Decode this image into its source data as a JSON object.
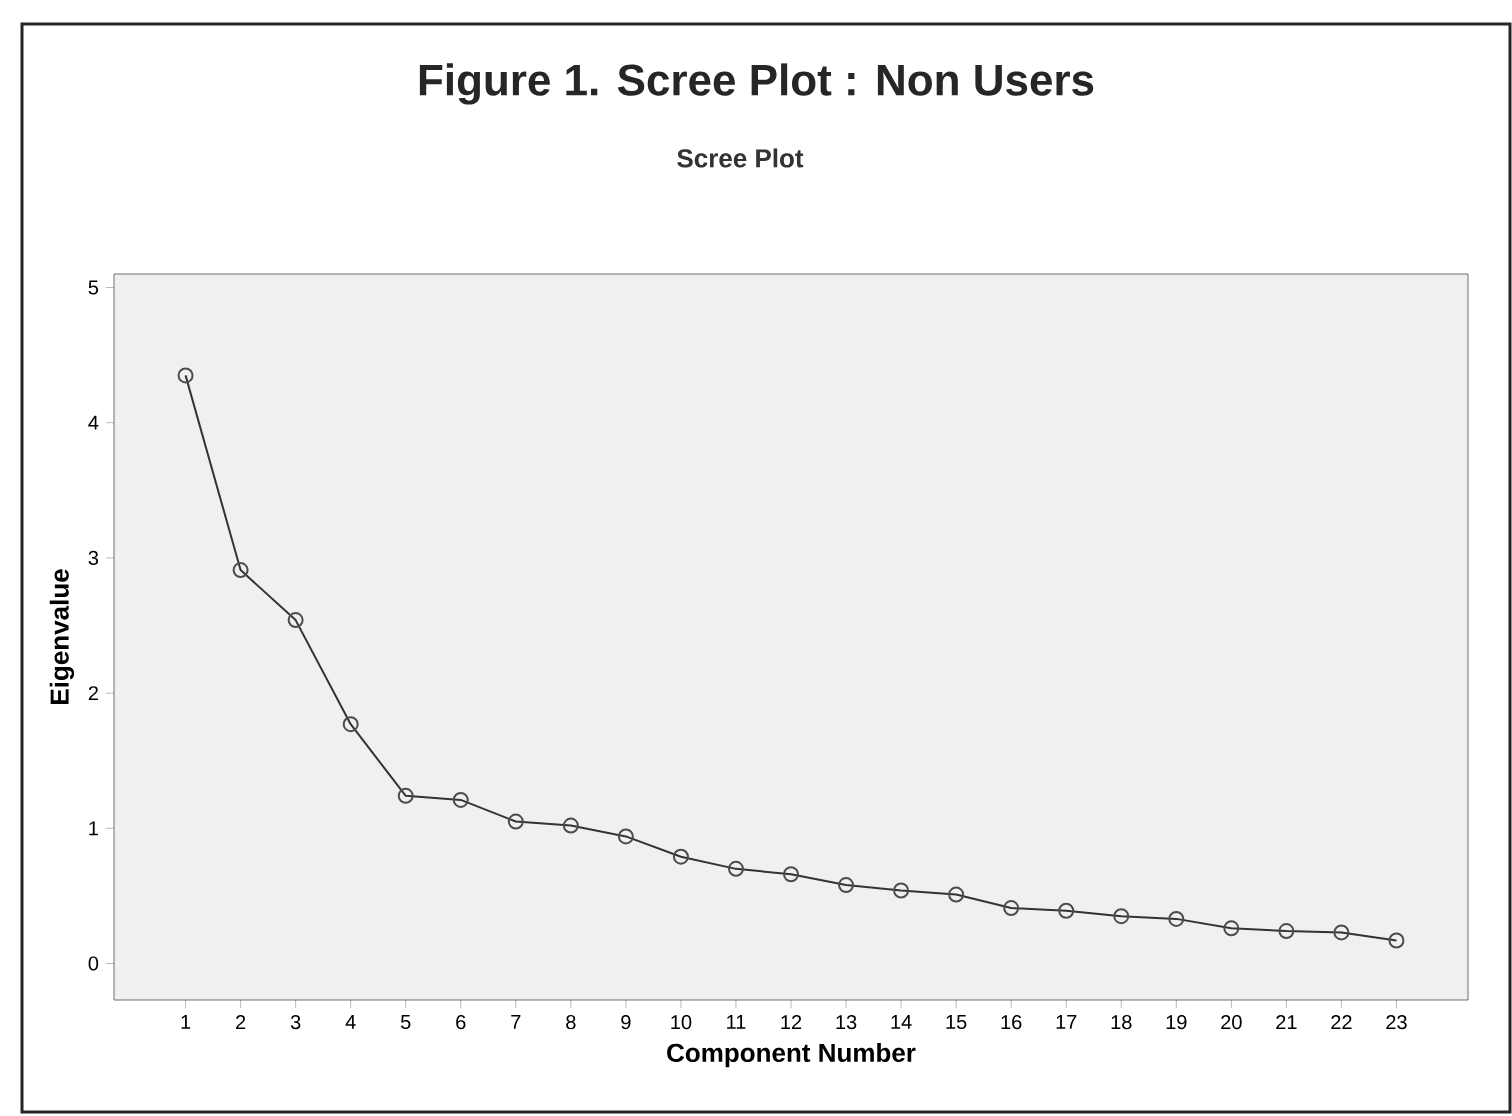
{
  "chart_data": {
    "type": "line",
    "title": "Figure 1. Scree Plot : Non Users",
    "subtitle": "Scree Plot",
    "xlabel": "Component Number",
    "ylabel": "Eigenvalue",
    "x": [
      1,
      2,
      3,
      4,
      5,
      6,
      7,
      8,
      9,
      10,
      11,
      12,
      13,
      14,
      15,
      16,
      17,
      18,
      19,
      20,
      21,
      22,
      23
    ],
    "series": [
      {
        "color": "#333333",
        "values": [
          4.35,
          2.91,
          2.54,
          1.77,
          1.24,
          1.21,
          1.05,
          1.02,
          0.94,
          0.79,
          0.7,
          0.66,
          0.58,
          0.54,
          0.51,
          0.41,
          0.39,
          0.35,
          0.33,
          0.26,
          0.24,
          0.23,
          0.17
        ]
      }
    ],
    "xlim": [
      -0.3,
      24.3
    ],
    "xticks": [
      1,
      2,
      3,
      4,
      5,
      6,
      7,
      8,
      9,
      10,
      11,
      12,
      13,
      14,
      15,
      16,
      17,
      18,
      19,
      20,
      21,
      22,
      23
    ],
    "ylim": [
      -0.27,
      5.1
    ],
    "yticks": [
      0,
      1,
      2,
      3,
      4,
      5
    ],
    "marker": "circle",
    "line_style": "solid",
    "grid": false
  }
}
